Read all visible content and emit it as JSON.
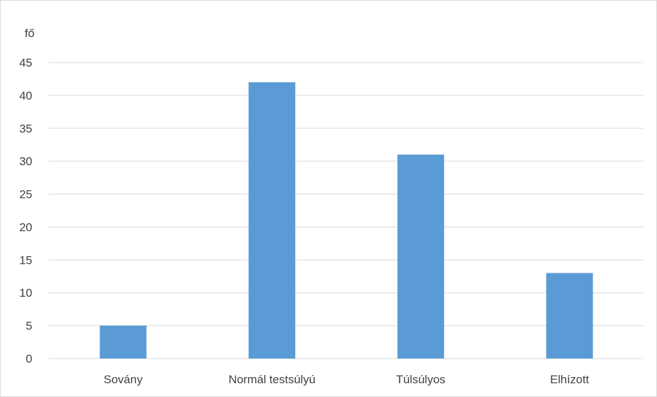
{
  "chart_data": {
    "type": "bar",
    "title": "",
    "xlabel": "",
    "ylabel": "fő",
    "categories": [
      "Sovány",
      "Normál testsúlyú",
      "Túlsúlyos",
      "Elhízott"
    ],
    "values": [
      5,
      42,
      31,
      13
    ],
    "ylim": [
      0,
      45
    ],
    "yticks": [
      0,
      5,
      10,
      15,
      20,
      25,
      30,
      35,
      40,
      45
    ],
    "grid": true,
    "legend": "none",
    "bar_color": "#5b9bd5",
    "grid_color": "#d9d9d9"
  }
}
